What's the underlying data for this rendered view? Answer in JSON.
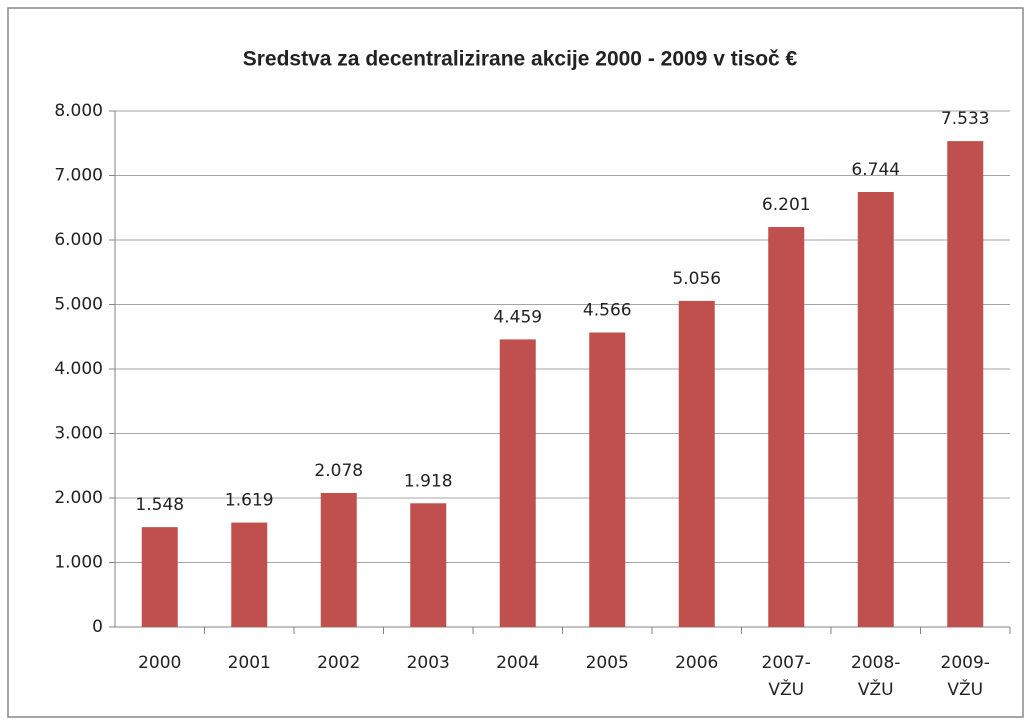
{
  "chart_data": {
    "type": "bar",
    "title": "Sredstva za decentralizirane akcije 2000 - 2009 v tisoč €",
    "categories": [
      "2000",
      "2001",
      "2002",
      "2003",
      "2004",
      "2005",
      "2006",
      "2007-VŽU",
      "2008-VŽU",
      "2009-VŽU"
    ],
    "values": [
      1548,
      1619,
      2078,
      1918,
      4459,
      4566,
      5056,
      6201,
      6744,
      7533
    ],
    "value_labels": [
      "1.548",
      "1.619",
      "2.078",
      "1.918",
      "4.459",
      "4.566",
      "5.056",
      "6.201",
      "6.744",
      "7.533"
    ],
    "color": "#c0504d",
    "ylim": [
      0,
      8000
    ],
    "yticks": [
      0,
      {
        "value": 1000,
        "label": "1.000"
      },
      {
        "value": 2000,
        "label": "2.000"
      },
      {
        "value": 3000,
        "label": "3.000"
      },
      {
        "value": 4000,
        "label": "4.000"
      },
      {
        "value": 5000,
        "label": "5.000"
      },
      {
        "value": 6000,
        "label": "6.000"
      },
      {
        "value": 7000,
        "label": "7.000"
      },
      {
        "value": 8000,
        "label": "8.000"
      }
    ],
    "grid": true
  }
}
